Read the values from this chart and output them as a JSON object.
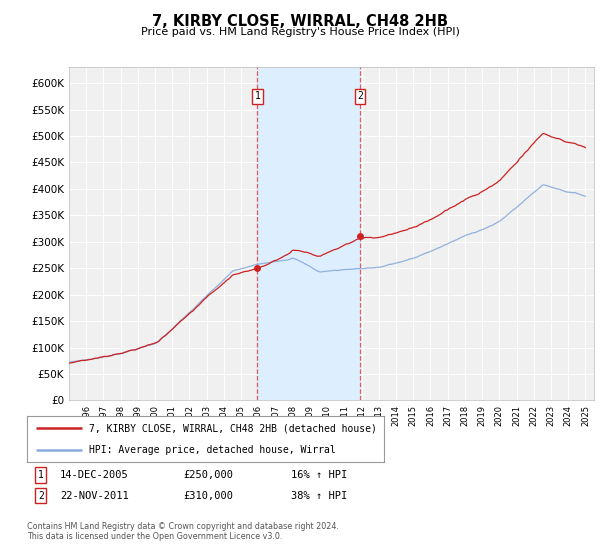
{
  "title": "7, KIRBY CLOSE, WIRRAL, CH48 2HB",
  "subtitle": "Price paid vs. HM Land Registry's House Price Index (HPI)",
  "ylabel_ticks": [
    "£0",
    "£50K",
    "£100K",
    "£150K",
    "£200K",
    "£250K",
    "£300K",
    "£350K",
    "£400K",
    "£450K",
    "£500K",
    "£550K",
    "£600K"
  ],
  "ylim": [
    0,
    630000
  ],
  "ytick_values": [
    0,
    50000,
    100000,
    150000,
    200000,
    250000,
    300000,
    350000,
    400000,
    450000,
    500000,
    550000,
    600000
  ],
  "hpi_color": "#88aadd",
  "price_color": "#cc2222",
  "sale1_date": 2005.95,
  "sale1_price": 250000,
  "sale2_date": 2011.9,
  "sale2_price": 310000,
  "legend_price_label": "7, KIRBY CLOSE, WIRRAL, CH48 2HB (detached house)",
  "legend_hpi_label": "HPI: Average price, detached house, Wirral",
  "annotation1_date": "14-DEC-2005",
  "annotation1_price": "£250,000",
  "annotation1_hpi": "16% ↑ HPI",
  "annotation2_date": "22-NOV-2011",
  "annotation2_price": "£310,000",
  "annotation2_hpi": "38% ↑ HPI",
  "footnote": "Contains HM Land Registry data © Crown copyright and database right 2024.\nThis data is licensed under the Open Government Licence v3.0.",
  "background_color": "#ffffff",
  "plot_bg_color": "#f0f0f0",
  "shade_color": "#ddeeff",
  "grid_color": "#ffffff"
}
